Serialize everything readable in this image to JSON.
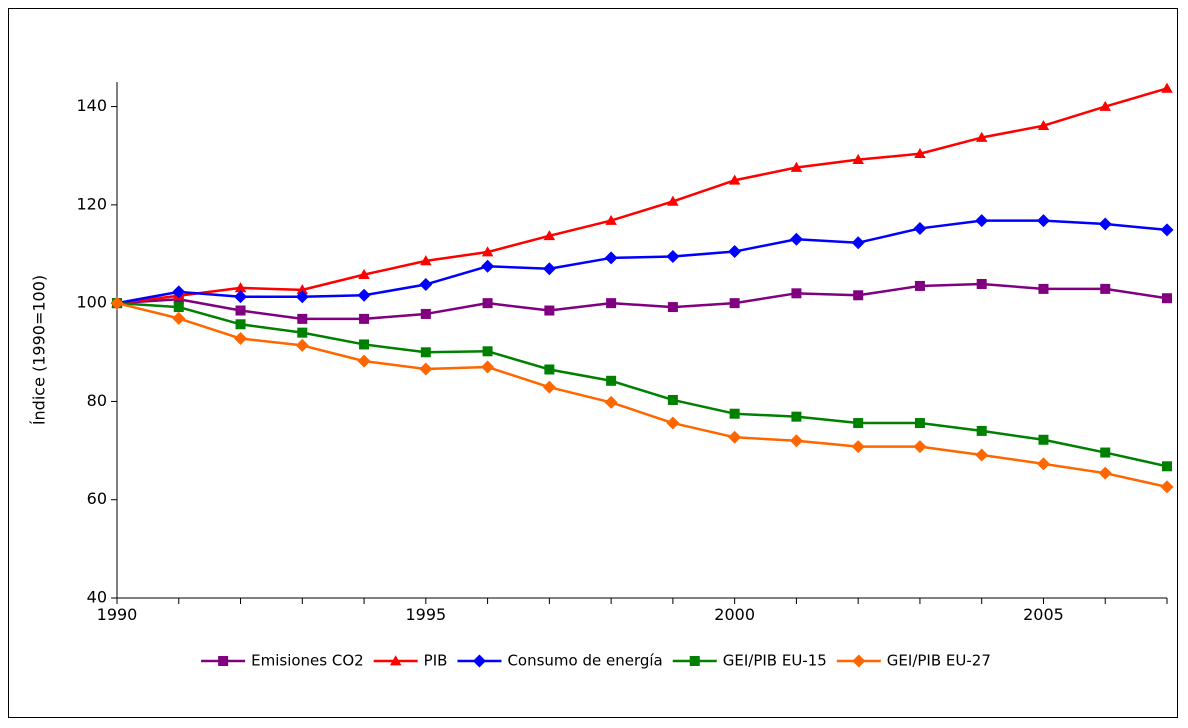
{
  "chart_data": {
    "type": "line",
    "title": "",
    "xlabel": "",
    "ylabel": "Índice (1990=100)",
    "xlim": [
      1990,
      2007
    ],
    "ylim": [
      40,
      145
    ],
    "x_ticks": [
      1990,
      1995,
      2000,
      2005
    ],
    "y_ticks": [
      40,
      60,
      80,
      100,
      120,
      140
    ],
    "grid": false,
    "legend_position": "bottom",
    "x": [
      1990,
      1991,
      1992,
      1993,
      1994,
      1995,
      1996,
      1997,
      1998,
      1999,
      2000,
      2001,
      2002,
      2003,
      2004,
      2005,
      2006,
      2007
    ],
    "series": [
      {
        "name": "Emisiones CO2",
        "color": "#800080",
        "marker": "square",
        "values": [
          100,
          100.8,
          98.5,
          96.8,
          96.8,
          97.8,
          100.0,
          98.5,
          100.0,
          99.2,
          100.0,
          102.0,
          101.6,
          103.5,
          103.9,
          102.9,
          102.9,
          101.0
        ]
      },
      {
        "name": "PIB",
        "color": "#ff0000",
        "marker": "triangle",
        "values": [
          100,
          101.5,
          103.1,
          102.7,
          105.8,
          108.6,
          110.4,
          113.7,
          116.8,
          120.7,
          125.0,
          127.6,
          129.2,
          130.4,
          133.7,
          136.1,
          140.0,
          143.7
        ]
      },
      {
        "name": "Consumo de energía",
        "color": "#0000ff",
        "marker": "diamond",
        "values": [
          100,
          102.3,
          101.3,
          101.3,
          101.6,
          103.8,
          107.5,
          107.0,
          109.2,
          109.5,
          110.5,
          113.0,
          112.3,
          115.2,
          116.8,
          116.8,
          116.1,
          114.9
        ]
      },
      {
        "name": "GEI/PIB EU-15",
        "color": "#008000",
        "marker": "square",
        "values": [
          100,
          99.2,
          95.7,
          94.0,
          91.6,
          90.0,
          90.2,
          86.5,
          84.2,
          80.3,
          77.5,
          76.9,
          75.6,
          75.6,
          74.0,
          72.2,
          69.6,
          66.8
        ]
      },
      {
        "name": "GEI/PIB EU-27",
        "color": "#ff6600",
        "marker": "diamond",
        "values": [
          100,
          96.9,
          92.8,
          91.4,
          88.2,
          86.6,
          87.0,
          82.9,
          79.8,
          75.6,
          72.7,
          72.0,
          70.8,
          70.8,
          69.1,
          67.3,
          65.4,
          62.6
        ]
      }
    ]
  }
}
